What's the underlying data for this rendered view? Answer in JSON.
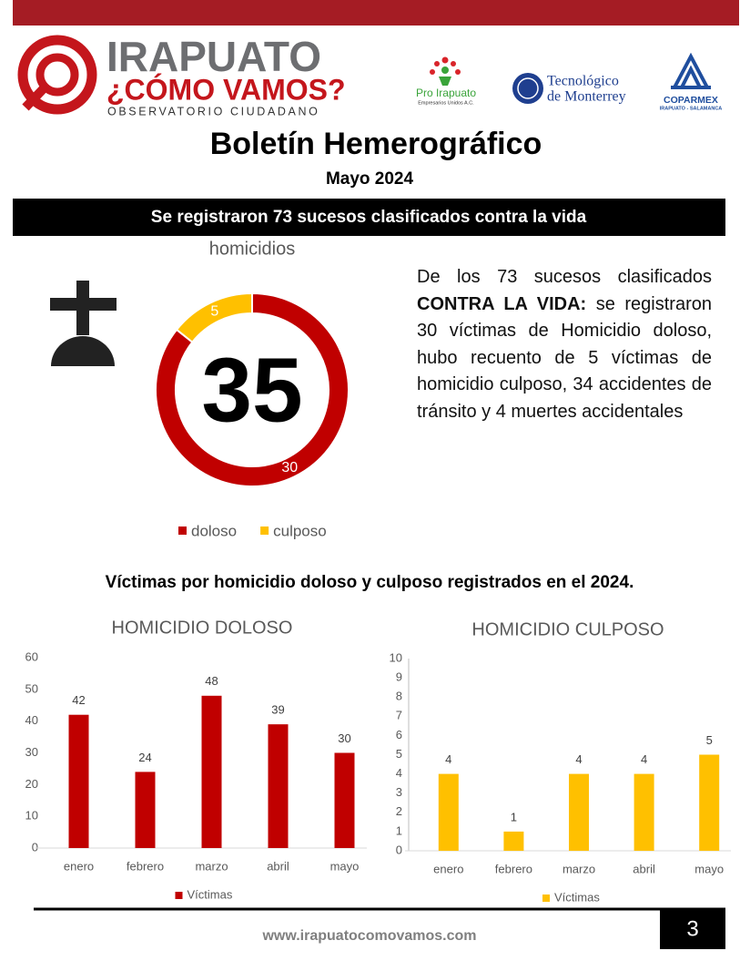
{
  "header": {
    "logo_title": "IRAPUATO",
    "logo_subtitle": "¿CÓMO VAMOS?",
    "logo_tagline": "OBSERVATORIO CIUDADANO",
    "partners": [
      {
        "name": "Pro Irapuato",
        "tagline": "Empresarios Unidos A.C."
      },
      {
        "lines": [
          "Tecnológico",
          "de Monterrey"
        ]
      },
      {
        "name": "COPARMEX",
        "tagline": "IRAPUATO - SALAMANCA"
      }
    ]
  },
  "title": "Boletín Hemerográfico",
  "subtitle": "Mayo 2024",
  "banner": "Se registraron 73 sucesos clasificados contra la vida",
  "paragraph": [
    {
      "text": "De los 73 sucesos clasificados "
    },
    {
      "text": "CONTRA LA VIDA:",
      "bold": true
    },
    {
      "text": "  se registraron 30 víctimas de Homicidio doloso, hubo recuento de 5 víctimas de homicidio culposo, 34 accidentes de tránsito y 4 muertes accidentales"
    }
  ],
  "section_heading": "Víctimas por homicidio doloso y culposo registrados en el 2024.",
  "chart_data": [
    {
      "type": "pie",
      "donut": true,
      "title": "homicidios",
      "center_label": 35,
      "categories": [
        "doloso",
        "culposo"
      ],
      "values": [
        30,
        5
      ],
      "colors": [
        "#c00000",
        "#ffc000"
      ],
      "legend": "bottom"
    },
    {
      "type": "bar",
      "title": "HOMICIDIO DOLOSO",
      "categories": [
        "enero",
        "febrero",
        "marzo",
        "abril",
        "mayo"
      ],
      "series": [
        {
          "name": "Víctimas",
          "color": "#c00000",
          "values": [
            42,
            24,
            48,
            39,
            30
          ]
        }
      ],
      "ylim": [
        0,
        60
      ],
      "yticks": [
        0,
        10,
        20,
        30,
        40,
        50,
        60
      ],
      "data_labels": true,
      "y_axis_line": false,
      "legend": "bottom"
    },
    {
      "type": "bar",
      "title": "HOMICIDIO CULPOSO",
      "categories": [
        "enero",
        "febrero",
        "marzo",
        "abril",
        "mayo"
      ],
      "series": [
        {
          "name": "Víctimas",
          "color": "#ffc000",
          "values": [
            4,
            1,
            4,
            4,
            5
          ]
        }
      ],
      "ylim": [
        0,
        10
      ],
      "yticks": [
        0,
        1,
        2,
        3,
        4,
        5,
        6,
        7,
        8,
        9,
        10
      ],
      "data_labels": true,
      "y_axis_line": true,
      "legend": "bottom"
    }
  ],
  "footer": {
    "url": "www.irapuatocomovamos.com",
    "page_number": "3"
  }
}
